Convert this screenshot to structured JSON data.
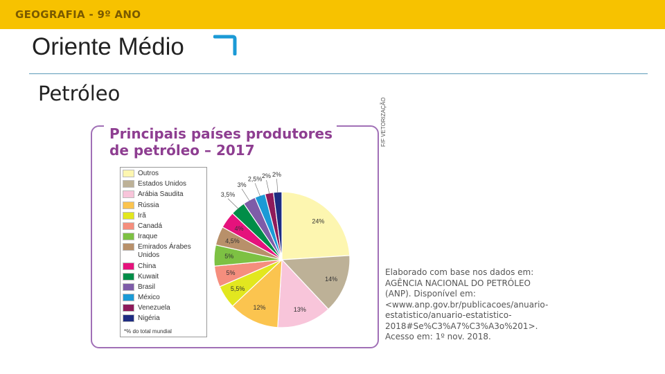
{
  "header": {
    "subject": "GEOGRAFIA - 9º ANO"
  },
  "slide": {
    "title": "Oriente Médio",
    "subtitle": "Petróleo"
  },
  "chart_data": {
    "type": "pie",
    "title_line1": "Principais países produtores",
    "title_line2": "de petróleo – 2017",
    "legend_note": "*% do total mundial",
    "credit": "F/F VETORIZAÇÃO",
    "slices": [
      {
        "name": "Outros",
        "value": 24,
        "label": "24%",
        "color": "#fdf6b0"
      },
      {
        "name": "Estados Unidos",
        "value": 14,
        "label": "14%",
        "color": "#bdb197"
      },
      {
        "name": "Arábia Saudita",
        "value": 13,
        "label": "13%",
        "color": "#f8c5da"
      },
      {
        "name": "Rússia",
        "value": 12,
        "label": "12%",
        "color": "#fbc44f"
      },
      {
        "name": "Irã",
        "value": 5.5,
        "label": "5,5%",
        "color": "#e2e71f"
      },
      {
        "name": "Canadá",
        "value": 5,
        "label": "5%",
        "color": "#f58e7d"
      },
      {
        "name": "Iraque",
        "value": 5,
        "label": "5%",
        "color": "#7dc143"
      },
      {
        "name": "Emirados Árabes Unidos",
        "value": 4.5,
        "label": "4,5%",
        "color": "#b8906a"
      },
      {
        "name": "China",
        "value": 4,
        "label": "4%",
        "color": "#e5127c"
      },
      {
        "name": "Kuwait",
        "value": 3.5,
        "label": "3,5%",
        "color": "#008d48"
      },
      {
        "name": "Brasil",
        "value": 3,
        "label": "3%",
        "color": "#7e5ca8"
      },
      {
        "name": "México",
        "value": 2.5,
        "label": "2,5%",
        "color": "#1b9ad6"
      },
      {
        "name": "Venezuela",
        "value": 2,
        "label": "2%",
        "color": "#8e1a5a"
      },
      {
        "name": "Nigéria",
        "value": 2,
        "label": "2%",
        "color": "#1e2c82"
      }
    ],
    "source": "Elaborado com base nos dados em: AGÊNCIA NACIONAL DO PETRÓLEO (ANP). Disponível em: <www.anp.gov.br/publicacoes/anuario-estatistico/anuario-estatistico-2018#Se%C3%A7%C3%A3o%201>. Acesso em: 1º nov. 2018."
  }
}
